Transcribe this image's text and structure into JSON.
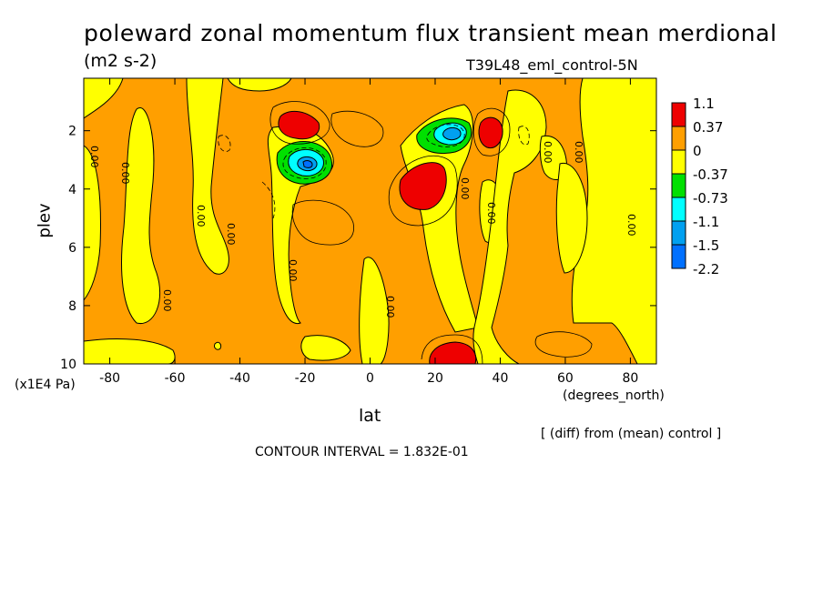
{
  "chart_data": {
    "type": "heatmap",
    "title": "poleward zonal momentum flux transient mean merdional",
    "units": "(m2 s-2)",
    "run_label": "T39L48_eml_control-5N",
    "xlabel": "lat",
    "x_units": "(degrees_north)",
    "ylabel": "plev",
    "y_units": "(x1E4 Pa)",
    "x_ticks": [
      "-80",
      "-60",
      "-40",
      "-20",
      "0",
      "20",
      "40",
      "60",
      "80"
    ],
    "x_tick_values": [
      -80,
      -60,
      -40,
      -20,
      0,
      20,
      40,
      60,
      80
    ],
    "y_ticks": [
      "2",
      "4",
      "6",
      "8",
      "10"
    ],
    "y_tick_values": [
      2,
      4,
      6,
      8,
      10
    ],
    "xlim": [
      -88,
      88
    ],
    "ylim": [
      10,
      0.2
    ],
    "y_inverted": true,
    "colorbar": {
      "labels": [
        "1.1",
        "0.37",
        "0",
        "-0.37",
        "-0.73",
        "-1.1",
        "-1.5",
        "-2.2"
      ],
      "colors": [
        "#ee0000",
        "#ff9f00",
        "#ffff00",
        "#00e000",
        "#00ffff",
        "#00a0f0",
        "#0070ff"
      ]
    },
    "contour_labels": [
      "0.00"
    ],
    "note": "[ (diff) from (mean) control ]",
    "contour_interval": "CONTOUR INTERVAL = 1.832E-01",
    "regions": {
      "positive_strong": [
        {
          "lat": -23,
          "plev": 1.8
        },
        {
          "lat": 13,
          "plev": 4.0
        },
        {
          "lat": 37,
          "plev": 2.0
        },
        {
          "lat": 23,
          "plev": 9.9
        }
      ],
      "negative_strong": [
        {
          "lat": -20,
          "plev": 3.0,
          "min": -2.2
        },
        {
          "lat": 27,
          "plev": 2.1,
          "min": -1.5
        }
      ]
    }
  }
}
